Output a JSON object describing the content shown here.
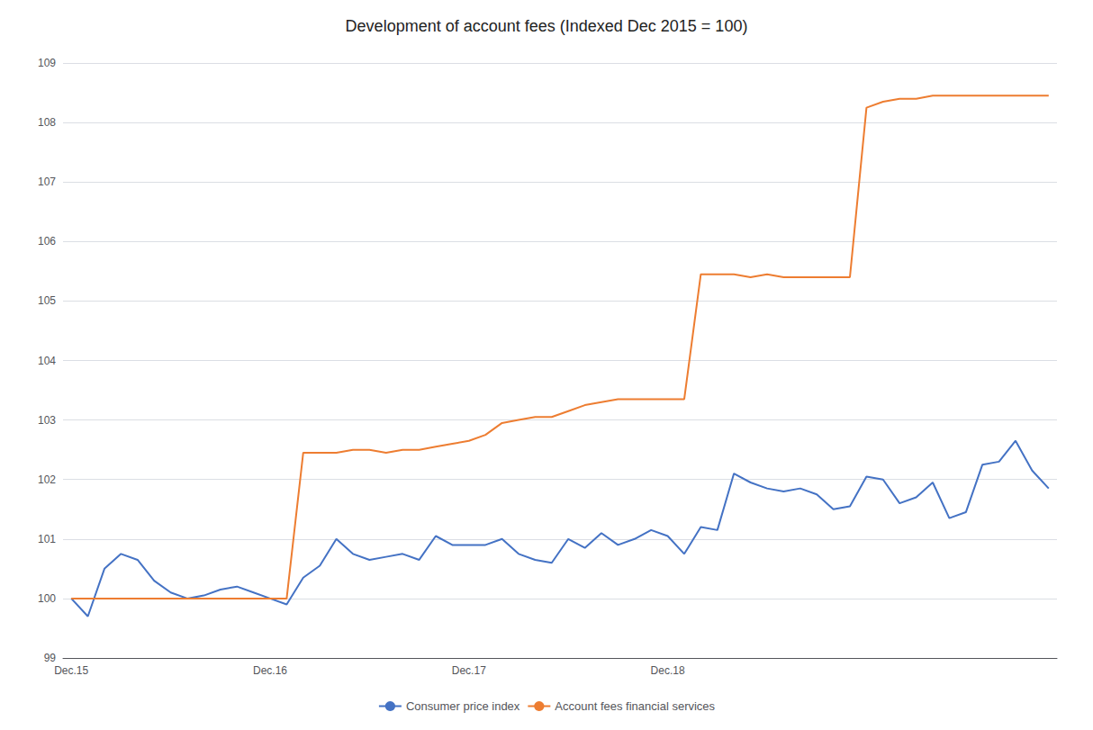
{
  "chart_data": {
    "type": "line",
    "title": "Development of account fees (Indexed Dec 2015 = 100)",
    "categories": [
      "Dec.15",
      null,
      null,
      null,
      null,
      null,
      null,
      null,
      null,
      null,
      null,
      null,
      "Dec.16",
      null,
      null,
      null,
      null,
      null,
      null,
      null,
      null,
      null,
      null,
      null,
      "Dec.17",
      null,
      null,
      null,
      null,
      null,
      null,
      null,
      null,
      null,
      null,
      null,
      "Dec.18",
      null,
      null,
      null,
      null,
      null,
      null,
      null,
      null,
      null,
      null,
      null,
      null,
      null,
      null,
      null,
      null,
      null,
      null,
      null,
      null,
      null,
      null,
      null
    ],
    "series": [
      {
        "name": "Consumer price index",
        "color": "#4472C4",
        "values": [
          100.0,
          99.7,
          100.5,
          100.75,
          100.65,
          100.3,
          100.1,
          100.0,
          100.05,
          100.15,
          100.2,
          100.1,
          100.0,
          99.9,
          100.35,
          100.55,
          101.0,
          100.75,
          100.65,
          100.7,
          100.75,
          100.65,
          101.05,
          100.9,
          100.9,
          100.9,
          101.0,
          100.75,
          100.65,
          100.6,
          101.0,
          100.85,
          101.1,
          100.9,
          101.0,
          101.15,
          101.05,
          100.75,
          101.2,
          101.15,
          102.1,
          101.95,
          101.85,
          101.8,
          101.85,
          101.75,
          101.5,
          101.55,
          102.05,
          102.0,
          101.6,
          101.7,
          101.95,
          101.35,
          101.45,
          102.25,
          102.3,
          102.65,
          102.15,
          101.85
        ]
      },
      {
        "name": "Account fees financial services",
        "color": "#ED7D31",
        "values": [
          100.0,
          100.0,
          100.0,
          100.0,
          100.0,
          100.0,
          100.0,
          100.0,
          100.0,
          100.0,
          100.0,
          100.0,
          100.0,
          100.0,
          102.45,
          102.45,
          102.45,
          102.5,
          102.5,
          102.45,
          102.5,
          102.5,
          102.55,
          102.6,
          102.65,
          102.75,
          102.95,
          103.0,
          103.05,
          103.05,
          103.15,
          103.25,
          103.3,
          103.35,
          103.35,
          103.35,
          103.35,
          103.35,
          105.45,
          105.45,
          105.45,
          105.4,
          105.45,
          105.4,
          105.4,
          105.4,
          105.4,
          105.4,
          108.25,
          108.35,
          108.4,
          108.4,
          108.45,
          108.45,
          108.45,
          108.45,
          108.45,
          108.45,
          108.45,
          108.45
        ]
      }
    ],
    "ylim": [
      99,
      109
    ],
    "yticks": [
      99,
      100,
      101,
      102,
      103,
      104,
      105,
      106,
      107,
      108,
      109
    ],
    "grid": true,
    "legend": "bottom"
  }
}
